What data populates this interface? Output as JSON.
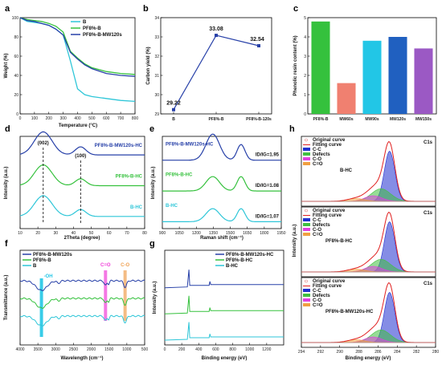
{
  "colors": {
    "cyan": "#2ec6d8",
    "green": "#35c13d",
    "blue": "#2740a8",
    "pink": "#f0a0ee",
    "lightblue": "#22c6e6",
    "orange": "#f0a050",
    "red": "#e0443a",
    "magenta": "#ef3fd9",
    "purple": "#8e44c0"
  },
  "chart_data": [
    {
      "id": "a",
      "type": "line",
      "xlabel": "Temperature (°C)",
      "ylabel": "Weight (%)",
      "xlim": [
        0,
        800
      ],
      "ylim": [
        0,
        100
      ],
      "xticks": [
        0,
        100,
        200,
        300,
        400,
        500,
        600,
        700,
        800
      ],
      "yticks": [
        0,
        20,
        40,
        60,
        80,
        100
      ],
      "legend": "top-right",
      "series": [
        {
          "name": "B",
          "color": "#2ec6d8",
          "x": [
            0,
            50,
            100,
            150,
            200,
            250,
            300,
            350,
            400,
            450,
            500,
            600,
            700,
            800
          ],
          "y": [
            100,
            96,
            95,
            94,
            92,
            88,
            82,
            55,
            26,
            20,
            18,
            16,
            14,
            13
          ]
        },
        {
          "name": "PF8%-B",
          "color": "#35c13d",
          "x": [
            0,
            50,
            100,
            150,
            200,
            250,
            300,
            350,
            400,
            450,
            500,
            600,
            700,
            800
          ],
          "y": [
            100,
            98,
            97,
            96,
            94,
            91,
            85,
            65,
            58,
            52,
            48,
            44,
            42,
            41
          ]
        },
        {
          "name": "PF8%-B-MW120s",
          "color": "#2740a8",
          "x": [
            0,
            50,
            100,
            150,
            200,
            250,
            300,
            350,
            400,
            450,
            500,
            600,
            700,
            800
          ],
          "y": [
            100,
            97,
            96,
            94,
            92,
            88,
            82,
            64,
            57,
            51,
            47,
            42,
            40,
            39
          ]
        }
      ]
    },
    {
      "id": "b",
      "type": "line",
      "xlabel": "",
      "ylabel": "Carbon yield (%)",
      "categories": [
        "B",
        "PF8%-B",
        "PF8%-B-120s"
      ],
      "values": [
        29.22,
        33.08,
        32.54
      ],
      "labels": [
        "29.22",
        "33.08",
        "32.54"
      ],
      "ylim": [
        29,
        34
      ],
      "yticks": [
        29,
        30,
        31,
        32,
        33,
        34
      ],
      "color": "#2740a8"
    },
    {
      "id": "c",
      "type": "bar",
      "xlabel": "",
      "ylabel": "Phenolic resin content (%)",
      "categories": [
        "PF8%-B",
        "MW60s",
        "MW90s",
        "MW120s",
        "MW150s"
      ],
      "values": [
        4.8,
        1.6,
        3.8,
        4.0,
        3.4
      ],
      "ylim": [
        0,
        5
      ],
      "yticks": [
        0,
        1,
        2,
        3,
        4,
        5
      ],
      "bar_colors": [
        "#35c13d",
        "#f08070",
        "#22c6e6",
        "#2060c0",
        "#9b59c4"
      ]
    },
    {
      "id": "d",
      "type": "line",
      "xlabel": "2Theta (degree)",
      "ylabel": "Intensity (a.u.)",
      "xlim": [
        10,
        80
      ],
      "xticks": [
        10,
        20,
        30,
        40,
        50,
        60,
        70,
        80
      ],
      "annotations": [
        "(002)",
        "(100)"
      ],
      "series": [
        {
          "name": "PF8%-B-MW120s-HC",
          "color": "#2740a8",
          "offset": 2,
          "peaks": [
            [
              23,
              1.0,
              5
            ],
            [
              44,
              0.35,
              3
            ]
          ]
        },
        {
          "name": "PF8%-B-HC",
          "color": "#35c13d",
          "offset": 1,
          "peaks": [
            [
              23,
              0.9,
              5
            ],
            [
              44,
              0.3,
              3
            ]
          ]
        },
        {
          "name": "B-HC",
          "color": "#2ec6d8",
          "offset": 0,
          "peaks": [
            [
              23,
              0.9,
              5
            ],
            [
              44,
              0.3,
              3
            ]
          ]
        }
      ]
    },
    {
      "id": "e",
      "type": "line",
      "xlabel": "Raman shift (cm⁻¹)",
      "ylabel": "Intensity (a.u.)",
      "xlim": [
        900,
        1950
      ],
      "xticks": [
        900,
        1050,
        1200,
        1350,
        1500,
        1650,
        1800,
        1950
      ],
      "series": [
        {
          "name": "PF8%-B-MW120s-HC",
          "color": "#2740a8",
          "ratio": "ID/IG=1.95",
          "offset": 2,
          "peaks": [
            [
              1345,
              1.0,
              60
            ],
            [
              1595,
              0.6,
              35
            ]
          ]
        },
        {
          "name": "PF8%-B-HC",
          "color": "#35c13d",
          "ratio": "ID/IG=1.08",
          "offset": 1,
          "peaks": [
            [
              1345,
              0.55,
              60
            ],
            [
              1595,
              0.55,
              35
            ]
          ]
        },
        {
          "name": "B-HC",
          "color": "#2ec6d8",
          "ratio": "ID/IG=1.07",
          "offset": 0,
          "peaks": [
            [
              1345,
              0.5,
              60
            ],
            [
              1595,
              0.5,
              35
            ]
          ]
        }
      ]
    },
    {
      "id": "f",
      "type": "line",
      "xlabel": "Wavelength (cm⁻¹)",
      "ylabel": "Transmittance (a.u.)",
      "xlim": [
        4000,
        500
      ],
      "xticks": [
        4000,
        3500,
        3000,
        2500,
        2000,
        1500,
        1000,
        500
      ],
      "legend": "top-left",
      "annotations": [
        "-OH",
        "C=O",
        "C-O"
      ],
      "series": [
        {
          "name": "PF8%-B-MW120s",
          "color": "#2740a8",
          "offset": 2
        },
        {
          "name": "PF8%-B",
          "color": "#35c13d",
          "offset": 1
        },
        {
          "name": "B",
          "color": "#2ec6d8",
          "offset": 0
        }
      ]
    },
    {
      "id": "g",
      "type": "line",
      "xlabel": "Binding energy (eV)",
      "ylabel": "Intensity (a.u.)",
      "xlim": [
        0,
        1400
      ],
      "xticks": [
        0,
        200,
        400,
        600,
        800,
        1000,
        1200
      ],
      "legend": "top-right",
      "series": [
        {
          "name": "PF8%-B-MW120s-HC",
          "color": "#2740a8",
          "offset": 2
        },
        {
          "name": "PF8%-B-HC",
          "color": "#35c13d",
          "offset": 1
        },
        {
          "name": "B-HC",
          "color": "#2ec6d8",
          "offset": 0
        }
      ]
    },
    {
      "id": "h",
      "type": "line",
      "xlabel": "Binding energy (eV)",
      "ylabel": "Intensity (a.u.)",
      "xlim": [
        294,
        280
      ],
      "xticks": [
        294,
        292,
        290,
        288,
        286,
        284,
        282,
        280
      ],
      "legend_items": [
        "Original curve",
        "Fitting curve",
        "C-C",
        "Defects",
        "C-O",
        "C=O"
      ],
      "subplots": [
        {
          "title": "C1s",
          "sample": "B-HC"
        },
        {
          "title": "C1s",
          "sample": "PF8%-B-HC"
        },
        {
          "title": "C1s",
          "sample": "PF8%-B-MW120s-HC"
        }
      ]
    }
  ],
  "panel_labels": [
    "a",
    "b",
    "c",
    "d",
    "e",
    "f",
    "g",
    "h"
  ]
}
